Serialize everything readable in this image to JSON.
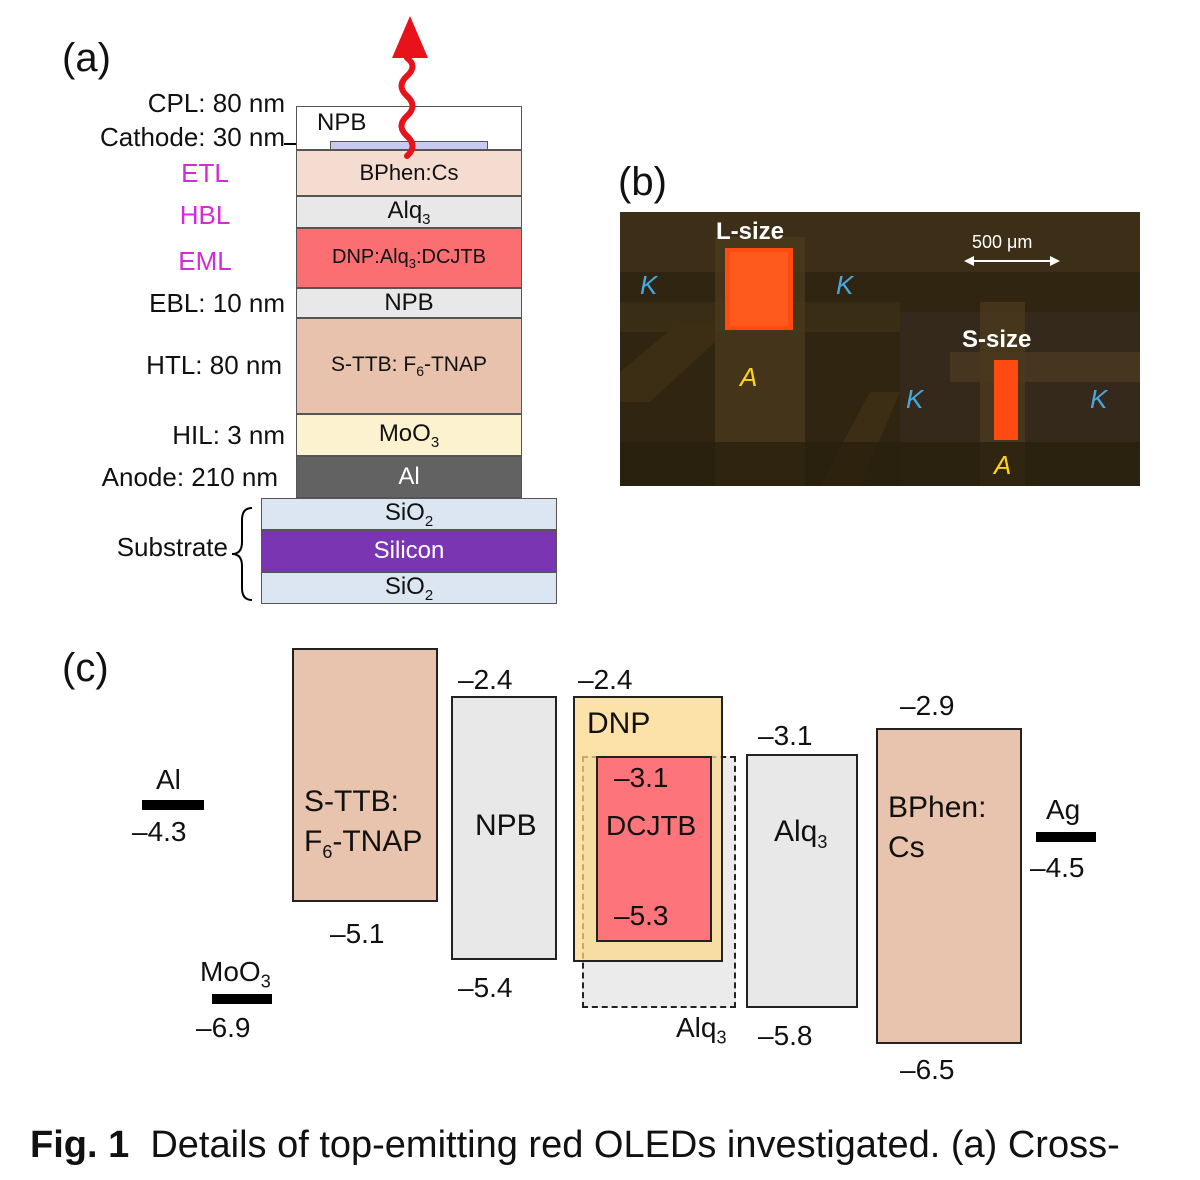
{
  "panel_a": {
    "label": "(a)",
    "side_labels": {
      "cpl": "CPL: 80 nm",
      "cathode": "Cathode: 30 nm",
      "etl": "ETL",
      "hbl": "HBL",
      "eml": "EML",
      "ebl": "EBL: 10 nm",
      "htl": "HTL: 80 nm",
      "hil": "HIL: 3 nm",
      "anode": "Anode: 210 nm",
      "substrate": "Substrate"
    },
    "layers": {
      "cpl": "NPB",
      "etl": "BPhen:Cs",
      "hbl": "Alq",
      "hbl_sub": "3",
      "eml_a": "DNP:Alq",
      "eml_sub": "3",
      "eml_b": ":DCJTB",
      "ebl": "NPB",
      "htl_a": "S-TTB: F",
      "htl_sub": "6",
      "htl_b": "-TNAP",
      "hil": "MoO",
      "hil_sub": "3",
      "anode": "Al",
      "sio2_top": "SiO",
      "sio2_top_sub": "2",
      "silicon": "Silicon",
      "sio2_bot": "SiO",
      "sio2_bot_sub": "2"
    },
    "colors": {
      "cathode": "#c9c9f2",
      "etl": "#f4ddd0",
      "hbl": "#e8e8e8",
      "eml": "#fb6f73",
      "ebl": "#e8e8e8",
      "htl": "#e9c2ad",
      "hil": "#fdf2d0",
      "anode": "#626262",
      "sio2": "#dce6f2",
      "silicon": "#7a35b3",
      "emission": "#e8121a"
    }
  },
  "panel_b": {
    "label": "(b)",
    "scale": "500 μm",
    "l_size": "L-size",
    "s_size": "S-size",
    "k": "K",
    "a": "A"
  },
  "panel_c": {
    "label": "(c)",
    "al": {
      "name": "Al",
      "level": "–4.3"
    },
    "moo3": {
      "name": "MoO",
      "sub": "3",
      "level": "–6.9"
    },
    "sttb": {
      "name_line1": "S-TTB:",
      "name_line2a": "F",
      "name_sub": "6",
      "name_line2b": "-TNAP",
      "lumo": null,
      "homo": "–5.1"
    },
    "npb": {
      "name": "NPB",
      "lumo": "–2.4",
      "homo": "–5.4"
    },
    "dnp": {
      "name": "DNP",
      "lumo": "–2.4"
    },
    "dcjtb": {
      "name": "DCJTB",
      "lumo": "–3.1",
      "homo": "–5.3"
    },
    "alq3_host": {
      "name": "Alq",
      "sub": "3"
    },
    "alq3": {
      "name": "Alq",
      "sub": "3",
      "lumo": "–3.1",
      "homo": "–5.8"
    },
    "bphen": {
      "name_line1": "BPhen:",
      "name_line2": "Cs",
      "lumo": "–2.9",
      "homo": "–6.5"
    },
    "ag": {
      "name": "Ag",
      "level": "–4.5"
    },
    "colors": {
      "sttb": "#e8c3ad",
      "npb": "#e8e8e8",
      "dnp": "#fbe2a8",
      "dcjtb": "#fd747a",
      "alq3": "#e8e8e8",
      "bphen": "#e8c3ad"
    }
  },
  "caption": {
    "fig": "Fig. 1",
    "text": "Details of top-emitting red OLEDs investigated. (a) Cross-"
  }
}
